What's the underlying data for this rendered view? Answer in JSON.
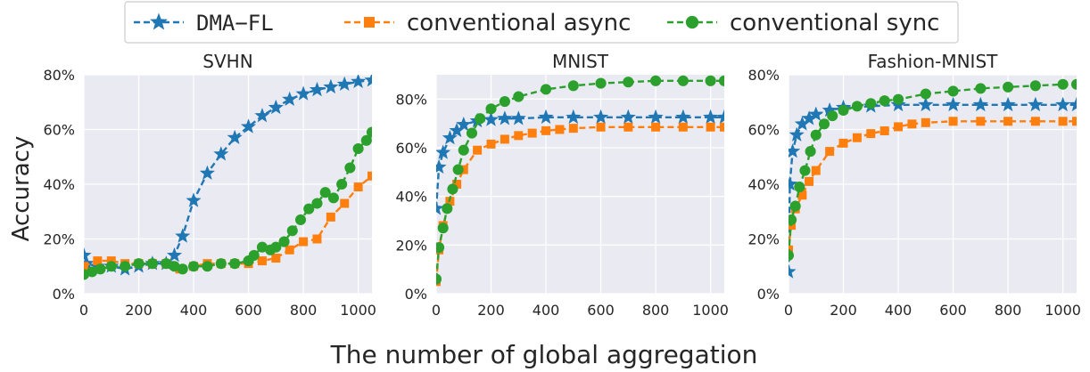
{
  "figure": {
    "ylabel": "Accuracy",
    "xlabel": "The number of global aggregation"
  },
  "legend": {
    "placement": "top-center",
    "entries": [
      {
        "label": "DMA−FL",
        "color": "#1f77b4",
        "marker": "star"
      },
      {
        "label": "conventional async",
        "color": "#ff7f0e",
        "marker": "square"
      },
      {
        "label": "conventional sync",
        "color": "#2ca02c",
        "marker": "circle"
      }
    ]
  },
  "chart_data": [
    {
      "type": "line",
      "title": "SVHN",
      "xlabel": "",
      "ylabel": "Accuracy",
      "xlim": [
        0,
        1050
      ],
      "ylim": [
        0,
        80
      ],
      "xticks": [
        0,
        200,
        400,
        600,
        800,
        1000
      ],
      "xtick_labels": [
        "0",
        "200",
        "400",
        "600",
        "800",
        "1000"
      ],
      "yticks": [
        0,
        20,
        40,
        60,
        80
      ],
      "ytick_labels": [
        "0%",
        "20%",
        "40%",
        "60%",
        "80%"
      ],
      "grid": true,
      "series": [
        {
          "name": "DMA−FL",
          "color": "#1f77b4",
          "marker": "star",
          "x": [
            0,
            10,
            50,
            100,
            150,
            200,
            250,
            300,
            330,
            360,
            400,
            450,
            500,
            550,
            600,
            650,
            700,
            750,
            800,
            850,
            900,
            950,
            1000,
            1050
          ],
          "y": [
            14,
            11,
            10,
            10,
            9,
            10,
            11,
            11,
            14,
            21,
            34,
            44,
            51,
            57,
            61,
            65,
            68,
            71,
            73,
            74.5,
            75.5,
            76.5,
            77.5,
            78
          ]
        },
        {
          "name": "conventional async",
          "color": "#ff7f0e",
          "marker": "square",
          "x": [
            0,
            50,
            100,
            150,
            200,
            250,
            300,
            350,
            400,
            450,
            500,
            550,
            600,
            650,
            700,
            750,
            800,
            850,
            900,
            950,
            1000,
            1050
          ],
          "y": [
            10,
            12,
            12,
            11,
            11,
            11,
            11,
            9,
            10,
            11,
            11,
            11,
            11,
            12,
            13,
            16,
            19,
            20,
            28,
            33,
            39,
            43
          ]
        },
        {
          "name": "conventional sync",
          "color": "#2ca02c",
          "marker": "circle",
          "x": [
            0,
            30,
            60,
            100,
            150,
            200,
            250,
            300,
            330,
            360,
            400,
            450,
            500,
            550,
            600,
            620,
            650,
            680,
            700,
            730,
            760,
            790,
            820,
            850,
            880,
            910,
            940,
            970,
            1000,
            1030,
            1050
          ],
          "y": [
            7,
            8,
            9,
            10,
            10,
            11,
            11,
            11,
            10,
            9,
            10,
            10,
            11,
            11,
            12,
            14,
            17,
            16,
            17,
            19,
            23,
            27,
            31,
            33,
            37,
            35,
            40,
            46,
            53,
            56,
            59
          ]
        }
      ]
    },
    {
      "type": "line",
      "title": "MNIST",
      "xlabel": "",
      "ylabel": "",
      "xlim": [
        0,
        1050
      ],
      "ylim": [
        0,
        90
      ],
      "xticks": [
        0,
        200,
        400,
        600,
        800,
        1000
      ],
      "xtick_labels": [
        "0",
        "200",
        "400",
        "600",
        "800",
        "1000"
      ],
      "yticks": [
        0,
        20,
        40,
        60,
        80
      ],
      "ytick_labels": [
        "0%",
        "20%",
        "40%",
        "60%",
        "80%"
      ],
      "grid": true,
      "series": [
        {
          "name": "DMA−FL",
          "color": "#1f77b4",
          "marker": "star",
          "x": [
            0,
            10,
            25,
            50,
            75,
            100,
            150,
            200,
            250,
            300,
            400,
            500,
            600,
            700,
            800,
            900,
            1000,
            1050
          ],
          "y": [
            35,
            52,
            58,
            64,
            67,
            69.5,
            71,
            71.5,
            72,
            72,
            72.5,
            72.5,
            72.5,
            72.5,
            72.5,
            72.5,
            72.5,
            72.5
          ]
        },
        {
          "name": "conventional async",
          "color": "#ff7f0e",
          "marker": "square",
          "x": [
            0,
            10,
            25,
            50,
            75,
            100,
            150,
            200,
            250,
            300,
            350,
            400,
            450,
            500,
            600,
            700,
            800,
            900,
            1000,
            1050
          ],
          "y": [
            5,
            18,
            28,
            38,
            45,
            51,
            59,
            61.5,
            63.5,
            65,
            66,
            67,
            67.5,
            68,
            68.5,
            68.5,
            68.5,
            68.5,
            68.5,
            68.5
          ]
        },
        {
          "name": "conventional sync",
          "color": "#2ca02c",
          "marker": "circle",
          "x": [
            0,
            10,
            25,
            40,
            60,
            80,
            100,
            130,
            160,
            200,
            250,
            300,
            400,
            500,
            600,
            700,
            800,
            900,
            1000,
            1050
          ],
          "y": [
            6,
            19,
            27,
            35,
            43,
            51,
            59,
            66,
            72,
            76,
            79,
            81,
            84,
            85.5,
            86.5,
            87,
            87.5,
            87.5,
            87.5,
            87.5
          ]
        }
      ]
    },
    {
      "type": "line",
      "title": "Fashion-MNIST",
      "xlabel": "",
      "ylabel": "",
      "xlim": [
        0,
        1050
      ],
      "ylim": [
        0,
        80
      ],
      "xticks": [
        0,
        200,
        400,
        600,
        800,
        1000
      ],
      "xtick_labels": [
        "0",
        "200",
        "400",
        "600",
        "800",
        "1000"
      ],
      "yticks": [
        0,
        20,
        40,
        60,
        80
      ],
      "ytick_labels": [
        "0%",
        "20%",
        "40%",
        "60%",
        "80%"
      ],
      "grid": true,
      "series": [
        {
          "name": "DMA−FL",
          "color": "#1f77b4",
          "marker": "star",
          "x": [
            0,
            5,
            15,
            30,
            50,
            75,
            100,
            150,
            200,
            300,
            400,
            500,
            600,
            700,
            800,
            900,
            1000,
            1050
          ],
          "y": [
            8,
            40,
            52,
            58,
            62,
            64,
            65.5,
            67,
            68,
            68.5,
            69,
            69,
            69,
            69,
            69,
            69,
            69,
            69
          ]
        },
        {
          "name": "conventional async",
          "color": "#ff7f0e",
          "marker": "square",
          "x": [
            0,
            10,
            25,
            50,
            75,
            100,
            150,
            200,
            250,
            300,
            350,
            400,
            450,
            500,
            600,
            700,
            800,
            900,
            1000,
            1050
          ],
          "y": [
            16,
            25,
            31,
            36,
            41,
            45,
            52,
            55,
            57,
            58.5,
            59.5,
            61,
            62,
            62.5,
            63,
            63,
            63,
            63,
            63,
            63
          ]
        },
        {
          "name": "conventional sync",
          "color": "#2ca02c",
          "marker": "circle",
          "x": [
            0,
            10,
            25,
            40,
            60,
            80,
            100,
            130,
            160,
            200,
            250,
            300,
            350,
            400,
            500,
            600,
            700,
            800,
            900,
            1000,
            1050
          ],
          "y": [
            14,
            27,
            32,
            39,
            45,
            52,
            58,
            62,
            65,
            67,
            68.5,
            69.5,
            70.5,
            71,
            73,
            74,
            75,
            75.5,
            76,
            76.5,
            76.5
          ]
        }
      ]
    }
  ]
}
